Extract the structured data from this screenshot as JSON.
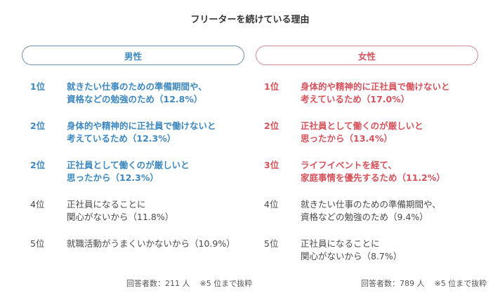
{
  "title": "フリーターを続けている理由",
  "male": {
    "label": "男性",
    "accent_color": "#3d88c0",
    "items": [
      {
        "rank": "1位",
        "text": "就きたい仕事のための準備期間や、\n資格などの勉強のため（12.8%）",
        "highlight": true
      },
      {
        "rank": "2位",
        "text": "身体的や精神的に正社員で働けないと\n考えているため（12.3%）",
        "highlight": true
      },
      {
        "rank": "2位",
        "text": "正社員として働くのが厳しいと\n思ったから（12.3%）",
        "highlight": true
      },
      {
        "rank": "4位",
        "text": "正社員になることに\n関心がないから（11.8%）",
        "highlight": false
      },
      {
        "rank": "5位",
        "text": "就職活動がうまくいかないから（10.9%）",
        "highlight": false
      }
    ],
    "respondents": "回答者数：211 人",
    "note": "※5 位まで抜粋"
  },
  "female": {
    "label": "女性",
    "accent_color": "#d5525c",
    "items": [
      {
        "rank": "1位",
        "text": "身体的や精神的に正社員で働けないと\n考えているため（17.0%）",
        "highlight": true
      },
      {
        "rank": "2位",
        "text": "正社員として働くのが厳しいと\n思ったから（13.4%）",
        "highlight": true
      },
      {
        "rank": "3位",
        "text": "ライフイベントを経て、\n家庭事情を優先するため（11.2%）",
        "highlight": true
      },
      {
        "rank": "4位",
        "text": "就きたい仕事のための準備期間や、\n資格などの勉強のため（9.4%）",
        "highlight": false
      },
      {
        "rank": "5位",
        "text": "正社員になることに\n関心がないから（8.7%）",
        "highlight": false
      }
    ],
    "respondents": "回答者数：789 人",
    "note": "※5 位まで抜粋"
  }
}
